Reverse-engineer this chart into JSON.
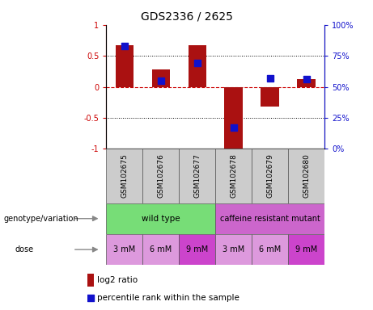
{
  "title": "GDS2336 / 2625",
  "samples": [
    "GSM102675",
    "GSM102676",
    "GSM102677",
    "GSM102678",
    "GSM102679",
    "GSM102680"
  ],
  "log2_ratio": [
    0.67,
    0.28,
    0.67,
    -1.0,
    -0.32,
    0.13
  ],
  "percentile_rank": [
    0.83,
    0.55,
    0.69,
    0.17,
    0.57,
    0.56
  ],
  "bar_color": "#aa1111",
  "dot_color": "#1111cc",
  "ylim_left": [
    -1,
    1
  ],
  "ylim_right": [
    0,
    100
  ],
  "yticks_left": [
    -1,
    -0.5,
    0,
    0.5,
    1
  ],
  "yticks_right": [
    0,
    25,
    50,
    75,
    100
  ],
  "ytick_labels_left": [
    "-1",
    "-0.5",
    "0",
    "0.5",
    "1"
  ],
  "ytick_labels_right": [
    "0%",
    "25%",
    "50%",
    "75%",
    "100%"
  ],
  "hline_zero_color": "#cc0000",
  "hline_positions": [
    0.5,
    -0.5
  ],
  "genotype_labels": [
    "wild type",
    "caffeine resistant mutant"
  ],
  "genotype_color_wt": "#77dd77",
  "genotype_color_cm": "#cc66cc",
  "dose_labels": [
    "3 mM",
    "6 mM",
    "9 mM",
    "3 mM",
    "6 mM",
    "9 mM"
  ],
  "dose_colors": [
    "#dd99dd",
    "#dd99dd",
    "#cc44cc",
    "#dd99dd",
    "#dd99dd",
    "#cc44cc"
  ],
  "legend_bar_label": "log2 ratio",
  "legend_dot_label": "percentile rank within the sample",
  "bar_width": 0.5,
  "dot_size": 40,
  "sample_box_color": "#cccccc",
  "left_label_color": "#444444",
  "arrow_color": "#888888"
}
